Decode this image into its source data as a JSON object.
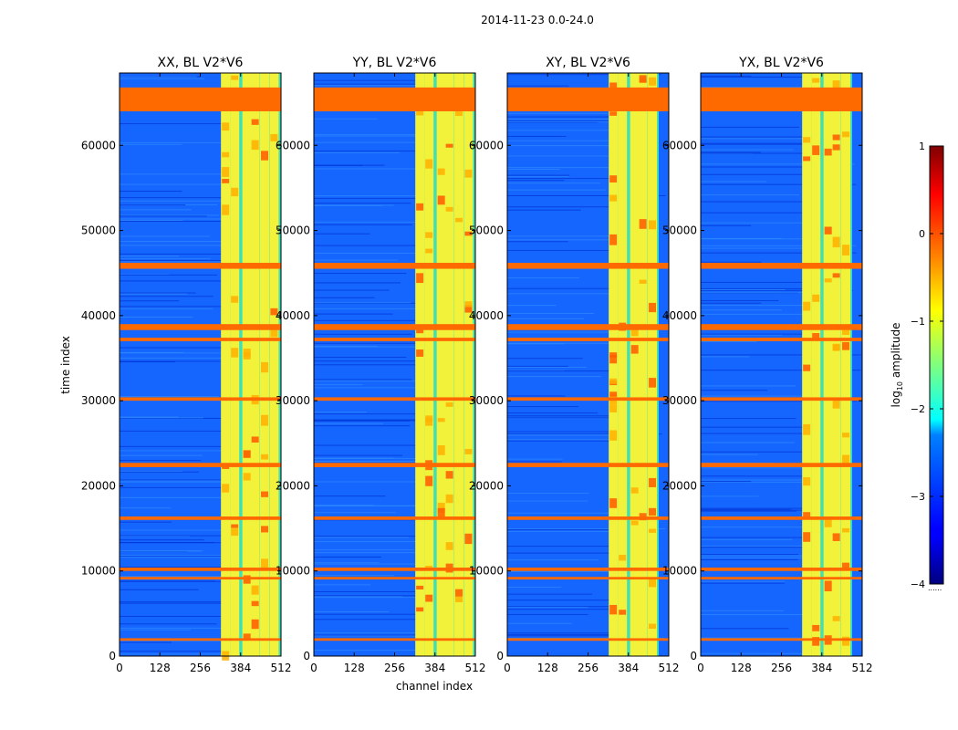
{
  "figure_title": "2014-11-23 0.0-24.0",
  "chart_data": [
    {
      "type": "heatmap",
      "title": "XX, BL V2*V6",
      "xlabel": "",
      "ylabel": "time index",
      "xlim": [
        0,
        512
      ],
      "ylim": [
        0,
        68500
      ],
      "xticks": [
        0,
        128,
        256,
        384,
        512
      ],
      "yticks": [
        0,
        10000,
        20000,
        30000,
        40000,
        50000,
        60000
      ],
      "signal_band_channels": [
        325,
        512
      ],
      "bright_channel_columns": [
        336,
        365,
        404,
        430,
        460,
        490
      ],
      "flagged_rows": [
        [
          64000,
          66800
        ],
        [
          45500,
          46200
        ],
        [
          38300,
          39000
        ],
        [
          37000,
          37400
        ],
        [
          30000,
          30400
        ],
        [
          22200,
          22700
        ],
        [
          16000,
          16400
        ],
        [
          10000,
          10400
        ],
        [
          9000,
          9300
        ],
        [
          1800,
          2100
        ]
      ]
    },
    {
      "type": "heatmap",
      "title": "YY, BL V2*V6",
      "xlabel": "channel index",
      "ylabel": "",
      "xlim": [
        0,
        512
      ],
      "ylim": [
        0,
        68500
      ],
      "xticks": [
        0,
        128,
        256,
        384,
        512
      ],
      "yticks": [
        0,
        10000,
        20000,
        30000,
        40000,
        50000,
        60000
      ],
      "signal_band_channels": [
        325,
        512
      ],
      "bright_channel_columns": [
        336,
        365,
        404,
        430,
        460,
        490
      ],
      "flagged_rows": [
        [
          64000,
          66800
        ],
        [
          45500,
          46200
        ],
        [
          38300,
          39000
        ],
        [
          37000,
          37400
        ],
        [
          30000,
          30400
        ],
        [
          22200,
          22700
        ],
        [
          16000,
          16400
        ],
        [
          10000,
          10400
        ],
        [
          9000,
          9300
        ],
        [
          1800,
          2100
        ]
      ]
    },
    {
      "type": "heatmap",
      "title": "XY, BL V2*V6",
      "xlabel": "",
      "ylabel": "",
      "xlim": [
        0,
        512
      ],
      "ylim": [
        0,
        68500
      ],
      "xticks": [
        0,
        128,
        256,
        384,
        512
      ],
      "yticks": [
        0,
        10000,
        20000,
        30000,
        40000,
        50000,
        60000
      ],
      "signal_band_channels": [
        325,
        480
      ],
      "bright_channel_columns": [
        336,
        365,
        404,
        430,
        460
      ],
      "flagged_rows": [
        [
          64000,
          66800
        ],
        [
          45500,
          46200
        ],
        [
          38300,
          39000
        ],
        [
          37000,
          37400
        ],
        [
          30000,
          30400
        ],
        [
          22200,
          22700
        ],
        [
          16000,
          16400
        ],
        [
          10000,
          10400
        ],
        [
          9000,
          9300
        ],
        [
          1800,
          2100
        ]
      ]
    },
    {
      "type": "heatmap",
      "title": "YX, BL V2*V6",
      "xlabel": "",
      "ylabel": "",
      "xlim": [
        0,
        512
      ],
      "ylim": [
        0,
        68500
      ],
      "xticks": [
        0,
        128,
        256,
        384,
        512
      ],
      "yticks": [
        0,
        10000,
        20000,
        30000,
        40000,
        50000,
        60000
      ],
      "signal_band_channels": [
        325,
        480
      ],
      "bright_channel_columns": [
        336,
        365,
        404,
        430,
        460
      ],
      "flagged_rows": [
        [
          64000,
          66800
        ],
        [
          45500,
          46200
        ],
        [
          38300,
          39000
        ],
        [
          37000,
          37400
        ],
        [
          30000,
          30400
        ],
        [
          22200,
          22700
        ],
        [
          16000,
          16400
        ],
        [
          10000,
          10400
        ],
        [
          9000,
          9300
        ],
        [
          1800,
          2100
        ]
      ]
    }
  ],
  "colorbar": {
    "label_prefix": "log",
    "label_subscript": "10",
    "label_suffix": " amplitude",
    "range": [
      -4,
      1
    ],
    "ticks": [
      1,
      0,
      -1,
      -2,
      -3,
      -4
    ],
    "tick_labels": [
      "1",
      "0",
      "−1",
      "−2",
      "−3",
      "−4"
    ],
    "colormap": "jet",
    "dots": "......"
  }
}
